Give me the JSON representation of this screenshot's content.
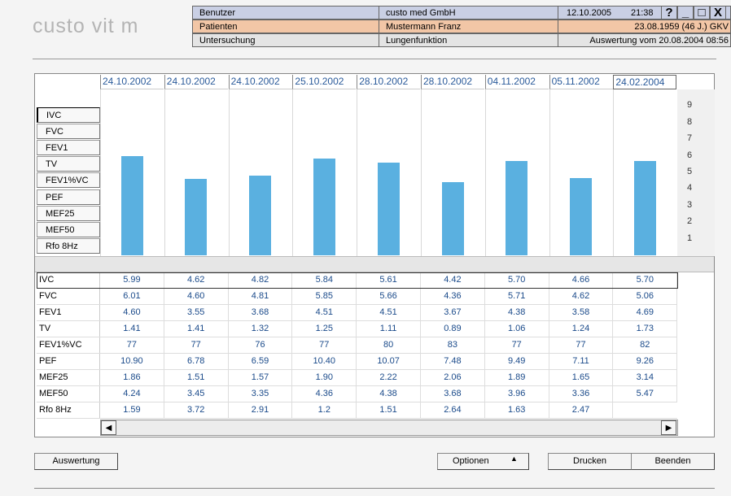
{
  "app": {
    "logo": "custo vit m"
  },
  "header": {
    "rows": [
      {
        "label": "Benutzer",
        "value": "custo med GmbH",
        "info": "12.10.2005",
        "time": "21:38"
      },
      {
        "label": "Patienten",
        "value": "Mustermann Franz",
        "info": "23.08.1959 (46 J.) GKV"
      },
      {
        "label": "Untersuchung",
        "value": "Lungenfunktion",
        "info": "Auswertung vom 20.08.2004 08:56"
      }
    ],
    "icons": [
      "?",
      "_",
      "□",
      "X"
    ]
  },
  "dates": [
    "24.10.2002",
    "24.10.2002",
    "24.10.2002",
    "25.10.2002",
    "28.10.2002",
    "28.10.2002",
    "04.11.2002",
    "05.11.2002",
    "24.02.2004"
  ],
  "parameters": [
    "IVC",
    "FVC",
    "FEV1",
    "TV",
    "FEV1%VC",
    "PEF",
    "MEF25",
    "MEF50",
    "Rfo 8Hz"
  ],
  "chart": {
    "ylim": [
      0,
      10
    ],
    "yticks": [
      1,
      2,
      3,
      4,
      5,
      6,
      7,
      8,
      9
    ],
    "bar_row": 0,
    "color": "#5ab0e0"
  },
  "table": {
    "rows": [
      {
        "label": "IVC",
        "values": [
          5.99,
          4.62,
          4.82,
          5.84,
          5.61,
          4.42,
          5.7,
          4.66,
          5.7
        ],
        "value_labels": [
          "5.99",
          "4.62",
          "4.82",
          "5.84",
          "5.61",
          "4.42",
          "5.70",
          "4.66",
          "5.70"
        ]
      },
      {
        "label": "FVC",
        "values": [
          6.01,
          4.6,
          4.81,
          5.85,
          5.66,
          4.36,
          5.71,
          4.62,
          5.06
        ],
        "value_labels": [
          "6.01",
          "4.60",
          "4.81",
          "5.85",
          "5.66",
          "4.36",
          "5.71",
          "4.62",
          "5.06"
        ]
      },
      {
        "label": "FEV1",
        "values": [
          4.6,
          3.55,
          3.68,
          4.51,
          4.51,
          3.67,
          4.38,
          3.58,
          4.69
        ],
        "value_labels": [
          "4.60",
          "3.55",
          "3.68",
          "4.51",
          "4.51",
          "3.67",
          "4.38",
          "3.58",
          "4.69"
        ]
      },
      {
        "label": "TV",
        "values": [
          1.41,
          1.41,
          1.32,
          1.25,
          1.11,
          0.89,
          1.06,
          1.24,
          1.73
        ]
      },
      {
        "label": "FEV1%VC",
        "values": [
          77,
          77,
          76,
          77,
          80,
          83,
          77,
          77,
          82
        ]
      },
      {
        "label": "PEF",
        "values": [
          10.9,
          6.78,
          6.59,
          10.4,
          10.07,
          7.48,
          9.49,
          7.11,
          9.26
        ],
        "value_labels": [
          "10.90",
          "6.78",
          "6.59",
          "10.40",
          "10.07",
          "7.48",
          "9.49",
          "7.11",
          "9.26"
        ]
      },
      {
        "label": "MEF25",
        "values": [
          1.86,
          1.51,
          1.57,
          1.9,
          2.22,
          2.06,
          1.89,
          1.65,
          3.14
        ],
        "value_labels": [
          "1.86",
          "1.51",
          "1.57",
          "1.90",
          "2.22",
          "2.06",
          "1.89",
          "1.65",
          "3.14"
        ]
      },
      {
        "label": "MEF50",
        "values": [
          4.24,
          3.45,
          3.35,
          4.36,
          4.38,
          3.68,
          3.96,
          3.36,
          5.47
        ]
      },
      {
        "label": "Rfo 8Hz",
        "values": [
          1.59,
          3.72,
          2.91,
          1.2,
          1.51,
          2.64,
          1.63,
          2.47
        ]
      }
    ]
  },
  "buttons": {
    "evaluate": "Auswertung",
    "options": "Optionen",
    "print": "Drucken",
    "quit": "Beenden"
  }
}
